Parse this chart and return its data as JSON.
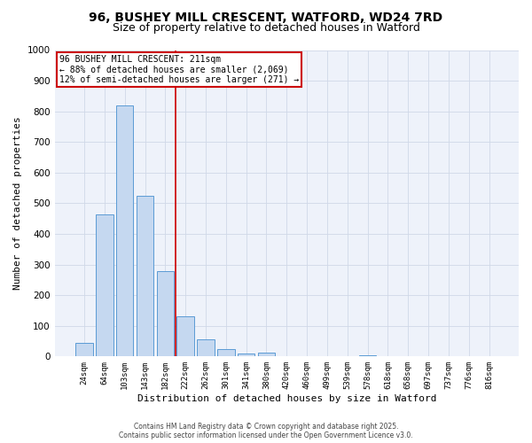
{
  "title_line1": "96, BUSHEY MILL CRESCENT, WATFORD, WD24 7RD",
  "title_line2": "Size of property relative to detached houses in Watford",
  "xlabel": "Distribution of detached houses by size in Watford",
  "ylabel": "Number of detached properties",
  "categories": [
    "24sqm",
    "64sqm",
    "103sqm",
    "143sqm",
    "182sqm",
    "222sqm",
    "262sqm",
    "301sqm",
    "341sqm",
    "380sqm",
    "420sqm",
    "460sqm",
    "499sqm",
    "539sqm",
    "578sqm",
    "618sqm",
    "658sqm",
    "697sqm",
    "737sqm",
    "776sqm",
    "816sqm"
  ],
  "values": [
    45,
    465,
    820,
    525,
    280,
    130,
    57,
    25,
    10,
    13,
    0,
    0,
    0,
    0,
    5,
    0,
    0,
    0,
    0,
    0,
    0
  ],
  "bar_color": "#c5d8f0",
  "bar_edge_color": "#5b9bd5",
  "reference_line_x": 4.5,
  "annotation_line1": "96 BUSHEY MILL CRESCENT: 211sqm",
  "annotation_line2": "← 88% of detached houses are smaller (2,069)",
  "annotation_line3": "12% of semi-detached houses are larger (271) →",
  "annotation_box_color": "#ffffff",
  "annotation_box_edge_color": "#cc0000",
  "ylim": [
    0,
    1000
  ],
  "yticks": [
    0,
    100,
    200,
    300,
    400,
    500,
    600,
    700,
    800,
    900,
    1000
  ],
  "grid_color": "#d0d8e8",
  "bg_color": "#eef2fa",
  "red_line_color": "#cc0000",
  "footer_line1": "Contains HM Land Registry data © Crown copyright and database right 2025.",
  "footer_line2": "Contains public sector information licensed under the Open Government Licence v3.0."
}
